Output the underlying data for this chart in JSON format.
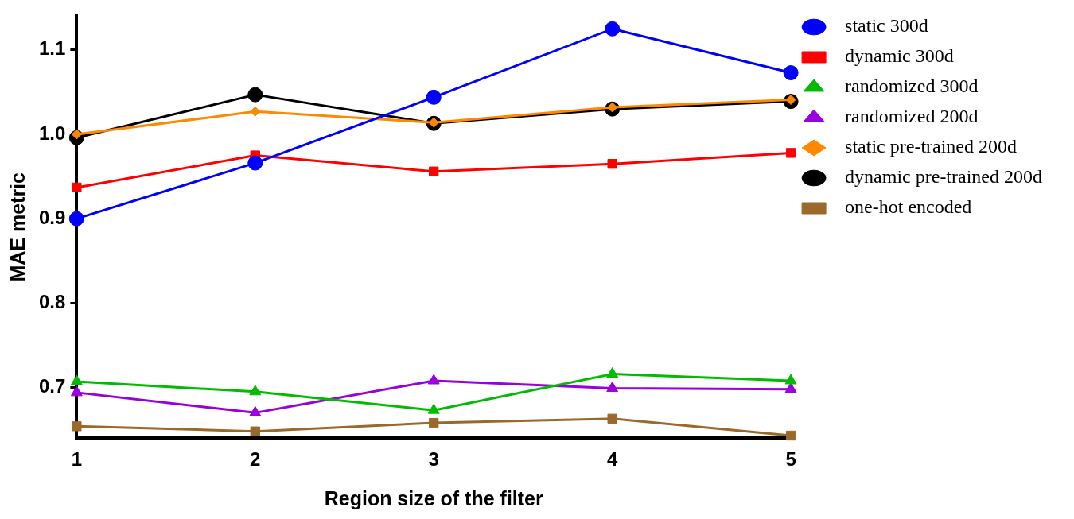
{
  "chart_data": {
    "type": "line",
    "xlabel": "Region size of the filter",
    "ylabel": "MAE metric",
    "x": [
      1,
      2,
      3,
      4,
      5
    ],
    "xlim": [
      1,
      5
    ],
    "xticks": [
      1,
      2,
      3,
      4,
      5
    ],
    "ylim": [
      0.64,
      1.14
    ],
    "yticks": [
      0.7,
      0.8,
      0.9,
      {
        "value": 1.0,
        "label": "1.0"
      },
      1.1
    ],
    "grid": false,
    "legend": "right",
    "line_style": "solid",
    "series": [
      {
        "name": "static 300d",
        "color": "#0000ff",
        "marker": "circle",
        "values": [
          0.9,
          0.966,
          1.044,
          1.125,
          1.073
        ]
      },
      {
        "name": "dynamic 300d",
        "color": "#ff0000",
        "marker": "square",
        "values": [
          0.937,
          0.975,
          0.956,
          0.965,
          0.978
        ]
      },
      {
        "name": "randomized 300d",
        "color": "#00bb00",
        "marker": "triangle",
        "values": [
          0.707,
          0.695,
          0.673,
          0.716,
          0.708
        ]
      },
      {
        "name": "randomized 200d",
        "color": "#9900dd",
        "marker": "triangle",
        "values": [
          0.694,
          0.67,
          0.708,
          0.699,
          0.698
        ]
      },
      {
        "name": "static pre-trained 200d",
        "color": "#ff8800",
        "marker": "diamond",
        "values": [
          1.0,
          1.027,
          1.014,
          1.032,
          1.041
        ]
      },
      {
        "name": "dynamic pre-trained 200d",
        "color": "#000000",
        "marker": "circle",
        "values": [
          0.996,
          1.047,
          1.013,
          1.03,
          1.039
        ]
      },
      {
        "name": "one-hot encoded",
        "color": "#9b6a2a",
        "marker": "square",
        "values": [
          0.654,
          0.648,
          0.658,
          0.663,
          0.643
        ]
      }
    ]
  }
}
